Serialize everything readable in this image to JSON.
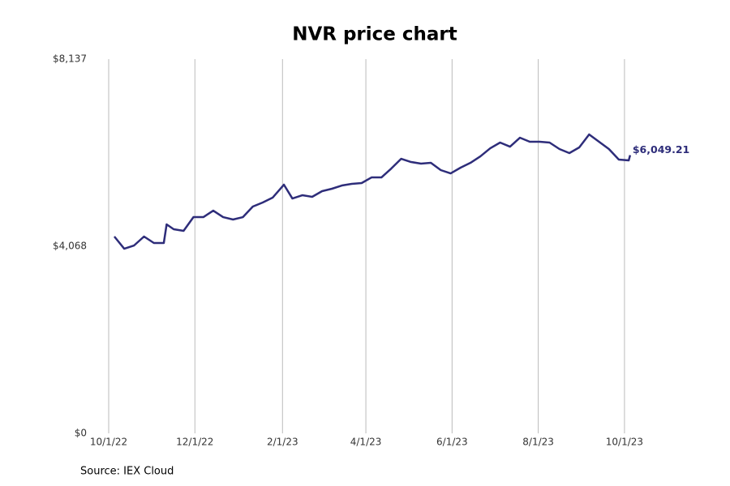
{
  "chart_data": {
    "type": "line",
    "title": "NVR price chart",
    "source": "Source: IEX Cloud",
    "x": [
      "2022-10-05",
      "2022-10-12",
      "2022-10-19",
      "2022-10-26",
      "2022-11-02",
      "2022-11-09",
      "2022-11-11",
      "2022-11-16",
      "2022-11-23",
      "2022-11-30",
      "2022-12-07",
      "2022-12-14",
      "2022-12-21",
      "2022-12-28",
      "2023-01-04",
      "2023-01-11",
      "2023-01-18",
      "2023-01-25",
      "2023-01-31",
      "2023-02-02",
      "2023-02-08",
      "2023-02-15",
      "2023-02-22",
      "2023-03-01",
      "2023-03-08",
      "2023-03-15",
      "2023-03-22",
      "2023-03-29",
      "2023-04-05",
      "2023-04-12",
      "2023-04-19",
      "2023-04-26",
      "2023-05-03",
      "2023-05-10",
      "2023-05-17",
      "2023-05-24",
      "2023-05-31",
      "2023-06-07",
      "2023-06-14",
      "2023-06-21",
      "2023-06-28",
      "2023-07-05",
      "2023-07-12",
      "2023-07-19",
      "2023-07-26",
      "2023-08-02",
      "2023-08-09",
      "2023-08-16",
      "2023-08-23",
      "2023-08-30",
      "2023-09-06",
      "2023-09-13",
      "2023-09-20",
      "2023-09-27",
      "2023-10-04",
      "2023-10-05"
    ],
    "series": [
      {
        "name": "NVR",
        "color": "#2e2d7a",
        "values": [
          4280,
          4015,
          4086,
          4280,
          4139,
          4139,
          4544,
          4438,
          4403,
          4702,
          4702,
          4843,
          4702,
          4650,
          4702,
          4931,
          5019,
          5125,
          5336,
          5407,
          5107,
          5178,
          5143,
          5266,
          5319,
          5389,
          5424,
          5442,
          5565,
          5565,
          5759,
          5970,
          5900,
          5865,
          5882,
          5724,
          5653,
          5777,
          5882,
          6023,
          6199,
          6323,
          6234,
          6428,
          6340,
          6340,
          6323,
          6182,
          6094,
          6217,
          6499,
          6340,
          6182,
          5953,
          5935,
          6049.21
        ],
        "value_labels": [
          null,
          null,
          null,
          null,
          null,
          null,
          null,
          null,
          null,
          null,
          null,
          null,
          null,
          null,
          null,
          null,
          null,
          null,
          null,
          null,
          null,
          null,
          null,
          null,
          null,
          null,
          null,
          null,
          null,
          null,
          null,
          null,
          null,
          null,
          null,
          null,
          null,
          null,
          null,
          null,
          null,
          null,
          null,
          null,
          null,
          null,
          null,
          null,
          null,
          null,
          null,
          null,
          null,
          null,
          null,
          "$6,049.21"
        ]
      }
    ],
    "xlim": [
      "2022-10-01",
      "2023-11-20"
    ],
    "xticks": [
      {
        "value": "2022-10-01",
        "label": "10/1/22"
      },
      {
        "value": "2022-12-01",
        "label": "12/1/22"
      },
      {
        "value": "2023-02-01",
        "label": "2/1/23"
      },
      {
        "value": "2023-04-01",
        "label": "4/1/23"
      },
      {
        "value": "2023-06-01",
        "label": "6/1/23"
      },
      {
        "value": "2023-08-01",
        "label": "8/1/23"
      },
      {
        "value": "2023-10-01",
        "label": "10/1/23"
      }
    ],
    "ylim": [
      0,
      8137
    ],
    "yticks": [
      {
        "value": 0,
        "label": "$0"
      },
      {
        "value": 4068,
        "label": "$4,068"
      },
      {
        "value": 8137,
        "label": "$8,137"
      }
    ],
    "grid": "x"
  }
}
